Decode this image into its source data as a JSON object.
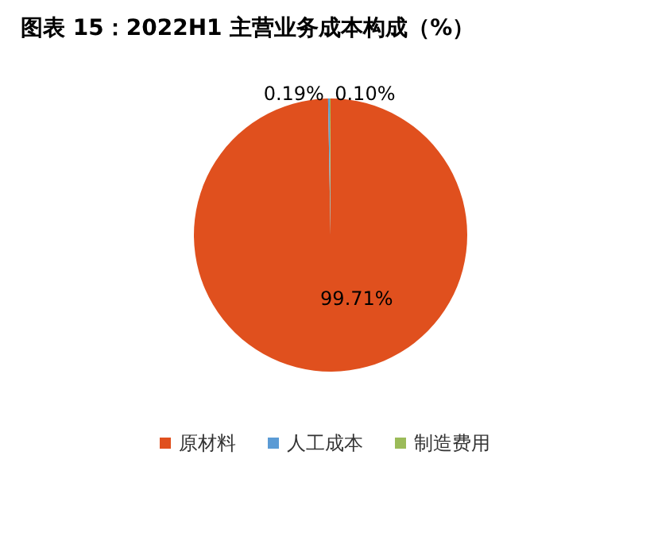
{
  "chart_data": {
    "type": "pie",
    "title": "图表 15：2022H1 主营业务成本构成（%）",
    "categories": [
      "原材料",
      "人工成本",
      "制造费用"
    ],
    "values": [
      99.71,
      0.19,
      0.1
    ],
    "colors": [
      "#e0501e",
      "#5b9bd5",
      "#9bbb59"
    ],
    "value_labels": [
      "99.71%",
      "0.19%",
      "0.10%"
    ],
    "legend": "bottom"
  }
}
